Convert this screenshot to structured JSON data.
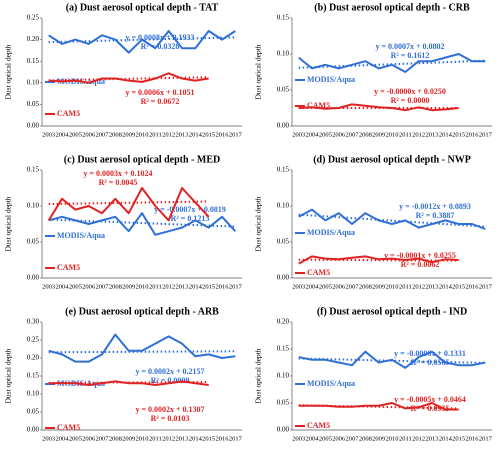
{
  "chart_data": [
    {
      "type": "line",
      "title": "(a) Dust aerosol optical depth - TAT",
      "ylabel": "Dust optical depth",
      "categories": [
        "2003",
        "2004",
        "2005",
        "2006",
        "2007",
        "2008",
        "2009",
        "2010",
        "2011",
        "2012",
        "2013",
        "2014",
        "2015",
        "2016",
        "2017"
      ],
      "ylim": [
        0,
        0.25
      ],
      "yticks": [
        {
          "value": 0,
          "label": "0.00"
        },
        0.05,
        {
          "value": 0.1,
          "label": "0.10"
        },
        0.15,
        {
          "value": 0.2,
          "label": "0.20"
        },
        0.25
      ],
      "series": [
        {
          "name": "MODIS/Aqua",
          "color": "#2f6fd6",
          "values": [
            0.21,
            0.19,
            0.2,
            0.19,
            0.21,
            0.2,
            0.17,
            0.2,
            0.18,
            0.22,
            0.18,
            0.18,
            0.22,
            0.2,
            0.22
          ],
          "trend": {
            "slope": 0.0008,
            "intercept": 0.1933,
            "equation": "y = 0.0008x + 0.1933",
            "r2": "R² = 0.0328"
          }
        },
        {
          "name": "CAM5",
          "color": "#e02222",
          "values": [
            0.105,
            0.103,
            0.105,
            0.1,
            0.11,
            0.11,
            0.105,
            0.102,
            0.11,
            0.122,
            0.11,
            0.105,
            0.11,
            null,
            null
          ],
          "trend": {
            "slope": 0.0006,
            "intercept": 0.1051,
            "equation": "y = 0.0006x + 0.1051",
            "r2": "R² = 0.0672"
          }
        }
      ]
    },
    {
      "type": "line",
      "title": "(b) Dust aerosol optical depth - CRB",
      "ylabel": "Dust optical depth",
      "categories": [
        "2003",
        "2004",
        "2005",
        "2006",
        "2007",
        "2008",
        "2009",
        "2010",
        "2011",
        "2012",
        "2013",
        "2014",
        "2015",
        "2016",
        "2017"
      ],
      "ylim": [
        0,
        0.15
      ],
      "yticks": [
        {
          "value": 0,
          "label": "0.00"
        },
        0.05,
        {
          "value": 0.1,
          "label": "0.10"
        },
        0.15
      ],
      "series": [
        {
          "name": "MODIS/Aqua",
          "color": "#2f6fd6",
          "values": [
            0.095,
            0.08,
            0.085,
            0.08,
            0.085,
            0.09,
            0.08,
            0.085,
            0.075,
            0.09,
            0.09,
            0.095,
            0.1,
            0.09,
            0.09
          ],
          "trend": {
            "slope": 0.0007,
            "intercept": 0.0802,
            "equation": "y = 0.0007x + 0.0802",
            "r2": "R² = 0.1612"
          }
        },
        {
          "name": "CAM5",
          "color": "#e02222",
          "values": [
            0.025,
            0.026,
            0.024,
            0.025,
            0.03,
            0.028,
            0.026,
            0.025,
            0.022,
            0.026,
            0.022,
            0.023,
            0.025,
            null,
            null
          ],
          "trend": {
            "slope": -0.0,
            "intercept": 0.025,
            "equation": "y = -0.0000x + 0.0250",
            "r2": "R² = 0.0000"
          }
        }
      ]
    },
    {
      "type": "line",
      "title": "(c) Dust aerosol optical depth - MED",
      "ylabel": "Dust optical depth",
      "categories": [
        "2003",
        "2004",
        "2005",
        "2006",
        "2007",
        "2008",
        "2009",
        "2010",
        "2011",
        "2012",
        "2013",
        "2014",
        "2015",
        "2016",
        "2017"
      ],
      "ylim": [
        0,
        0.15
      ],
      "yticks": [
        {
          "value": 0,
          "label": "0.00"
        },
        0.05,
        {
          "value": 0.1,
          "label": "0.10"
        },
        0.15
      ],
      "series": [
        {
          "name": "MODIS/Aqua",
          "color": "#2f6fd6",
          "values": [
            0.08,
            0.085,
            0.08,
            0.075,
            0.08,
            0.085,
            0.065,
            0.09,
            0.06,
            0.065,
            0.07,
            0.08,
            0.07,
            0.085,
            0.065
          ],
          "trend": {
            "slope": -0.0007,
            "intercept": 0.0819,
            "equation": "y = -0.0007x + 0.0819",
            "r2": "R² = 0.1213"
          }
        },
        {
          "name": "CAM5",
          "color": "#e02222",
          "values": [
            0.08,
            0.11,
            0.095,
            0.1,
            0.09,
            0.11,
            0.09,
            0.125,
            0.1,
            0.08,
            0.125,
            0.105,
            0.085,
            null,
            null
          ],
          "trend": {
            "slope": 0.0003,
            "intercept": 0.1024,
            "equation": "y = 0.0003x + 0.1024",
            "r2": "R² = 0.0045"
          }
        }
      ]
    },
    {
      "type": "line",
      "title": "(d) Dust aerosol optical depth - NWP",
      "ylabel": "Dust optical depth",
      "categories": [
        "2003",
        "2004",
        "2005",
        "2006",
        "2007",
        "2008",
        "2009",
        "2010",
        "2011",
        "2012",
        "2013",
        "2014",
        "2015",
        "2016",
        "2017"
      ],
      "ylim": [
        0,
        0.15
      ],
      "yticks": [
        {
          "value": 0,
          "label": "0.00"
        },
        0.05,
        {
          "value": 0.1,
          "label": "0.10"
        },
        0.15
      ],
      "series": [
        {
          "name": "MODIS/Aqua",
          "color": "#2f6fd6",
          "values": [
            0.085,
            0.095,
            0.08,
            0.09,
            0.075,
            0.09,
            0.08,
            0.075,
            0.08,
            0.07,
            0.075,
            0.08,
            0.075,
            0.075,
            0.068
          ],
          "trend": {
            "slope": -0.0012,
            "intercept": 0.0893,
            "equation": "y = -0.0012x + 0.0893",
            "r2": "R² = 0.3887"
          }
        },
        {
          "name": "CAM5",
          "color": "#e02222",
          "values": [
            0.02,
            0.03,
            0.027,
            0.026,
            0.028,
            0.03,
            0.026,
            0.027,
            0.025,
            0.027,
            0.022,
            0.026,
            0.025,
            null,
            null
          ],
          "trend": {
            "slope": -0.0001,
            "intercept": 0.0255,
            "equation": "y = -0.0001x + 0.0255",
            "r2": "R² = 0.0062"
          }
        }
      ]
    },
    {
      "type": "line",
      "title": "(e) Dust aerosol optical depth - ARB",
      "ylabel": "Dust optical depth",
      "categories": [
        "2003",
        "2004",
        "2005",
        "2006",
        "2007",
        "2008",
        "2009",
        "2010",
        "2011",
        "2012",
        "2013",
        "2014",
        "2015",
        "2016",
        "2017"
      ],
      "ylim": [
        0,
        0.3
      ],
      "yticks": [
        {
          "value": 0,
          "label": "0.00"
        },
        0.05,
        {
          "value": 0.1,
          "label": "0.10"
        },
        0.15,
        {
          "value": 0.2,
          "label": "0.20"
        },
        0.25,
        {
          "value": 0.3,
          "label": "0.30"
        }
      ],
      "series": [
        {
          "name": "MODIS/Aqua",
          "color": "#2f6fd6",
          "values": [
            0.22,
            0.21,
            0.19,
            0.19,
            0.21,
            0.265,
            0.22,
            0.22,
            0.24,
            0.26,
            0.24,
            0.205,
            0.21,
            0.2,
            0.205
          ],
          "trend": {
            "slope": 0.0002,
            "intercept": 0.2157,
            "equation": "y = 0.0002x + 0.2157",
            "r2": "R² = 0.0009"
          }
        },
        {
          "name": "CAM5",
          "color": "#e02222",
          "values": [
            0.13,
            0.13,
            0.13,
            0.125,
            0.13,
            0.135,
            0.13,
            0.13,
            0.125,
            0.13,
            0.135,
            0.13,
            0.125,
            null,
            null
          ],
          "trend": {
            "slope": 0.0002,
            "intercept": 0.1307,
            "equation": "y = 0.0002x + 0.1307",
            "r2": "R² = 0.0103"
          }
        }
      ]
    },
    {
      "type": "line",
      "title": "(f) Dust aerosol optical depth - IND",
      "ylabel": "Dust optical depth",
      "categories": [
        "2003",
        "2004",
        "2005",
        "2006",
        "2007",
        "2008",
        "2009",
        "2010",
        "2011",
        "2012",
        "2013",
        "2014",
        "2015",
        "2016",
        "2017"
      ],
      "ylim": [
        0,
        0.2
      ],
      "yticks": [
        {
          "value": 0,
          "label": "0.00"
        },
        0.05,
        {
          "value": 0.1,
          "label": "0.10"
        },
        0.15,
        {
          "value": 0.2,
          "label": "0.20"
        }
      ],
      "series": [
        {
          "name": "MODIS/Aqua",
          "color": "#2f6fd6",
          "values": [
            0.135,
            0.13,
            0.13,
            0.125,
            0.12,
            0.145,
            0.125,
            0.13,
            0.115,
            0.135,
            0.145,
            0.125,
            0.12,
            0.12,
            0.125
          ],
          "trend": {
            "slope": -0.0006,
            "intercept": 0.1331,
            "equation": "y = -0.0006x + 0.1331",
            "r2": "R² = 0.0565"
          }
        },
        {
          "name": "CAM5",
          "color": "#e02222",
          "values": [
            0.045,
            0.045,
            0.045,
            0.043,
            0.043,
            0.045,
            0.045,
            0.05,
            0.04,
            0.042,
            0.05,
            0.038,
            0.038,
            null,
            null
          ],
          "trend": {
            "slope": -0.0005,
            "intercept": 0.0464,
            "equation": "y = -0.0005x + 0.0464",
            "r2": "R² = 0.0935"
          }
        }
      ]
    }
  ]
}
